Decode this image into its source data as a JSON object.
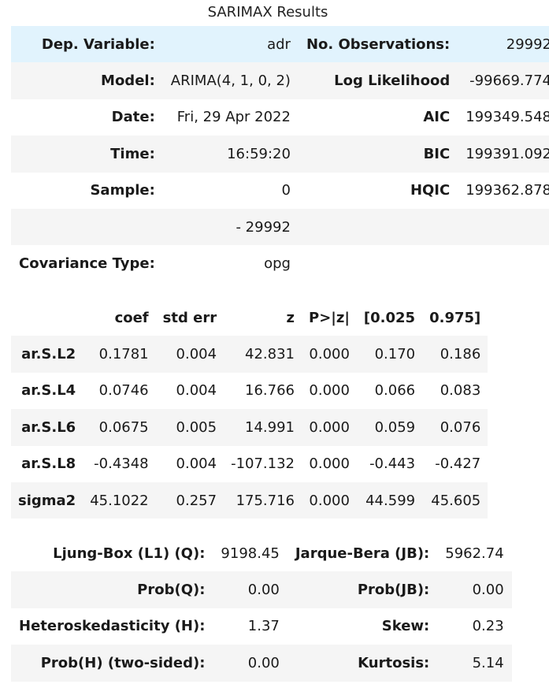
{
  "caption": "SARIMAX Results",
  "summary": {
    "rows": [
      {
        "l1": "Dep. Variable:",
        "v1": "adr",
        "l2": "No. Observations:",
        "v2": "29992"
      },
      {
        "l1": "Model:",
        "v1": "ARIMA(4, 1, 0, 2)",
        "l2": "Log Likelihood",
        "v2": "-99669.774"
      },
      {
        "l1": "Date:",
        "v1": "Fri, 29 Apr 2022",
        "l2": "AIC",
        "v2": "199349.548"
      },
      {
        "l1": "Time:",
        "v1": "16:59:20",
        "l2": "BIC",
        "v2": "199391.092"
      },
      {
        "l1": "Sample:",
        "v1": "0",
        "l2": "HQIC",
        "v2": "199362.878"
      },
      {
        "l1": "",
        "v1": "- 29992",
        "l2": "",
        "v2": ""
      },
      {
        "l1": "Covariance Type:",
        "v1": "opg",
        "l2": "",
        "v2": ""
      }
    ]
  },
  "coef": {
    "headers": [
      "",
      "coef",
      "std err",
      "z",
      "P>|z|",
      "[0.025",
      "0.975]"
    ],
    "rows": [
      {
        "name": "ar.S.L2",
        "vals": [
          "0.1781",
          "0.004",
          "42.831",
          "0.000",
          "0.170",
          "0.186"
        ]
      },
      {
        "name": "ar.S.L4",
        "vals": [
          "0.0746",
          "0.004",
          "16.766",
          "0.000",
          "0.066",
          "0.083"
        ]
      },
      {
        "name": "ar.S.L6",
        "vals": [
          "0.0675",
          "0.005",
          "14.991",
          "0.000",
          "0.059",
          "0.076"
        ]
      },
      {
        "name": "ar.S.L8",
        "vals": [
          "-0.4348",
          "0.004",
          "-107.132",
          "0.000",
          "-0.443",
          "-0.427"
        ]
      },
      {
        "name": "sigma2",
        "vals": [
          "45.1022",
          "0.257",
          "175.716",
          "0.000",
          "44.599",
          "45.605"
        ]
      }
    ]
  },
  "diag": {
    "rows": [
      {
        "l1": "Ljung-Box (L1) (Q):",
        "v1": "9198.45",
        "l2": "Jarque-Bera (JB):",
        "v2": "5962.74"
      },
      {
        "l1": "Prob(Q):",
        "v1": "0.00",
        "l2": "Prob(JB):",
        "v2": "0.00"
      },
      {
        "l1": "Heteroskedasticity (H):",
        "v1": "1.37",
        "l2": "Skew:",
        "v2": "0.23"
      },
      {
        "l1": "Prob(H) (two-sided):",
        "v1": "0.00",
        "l2": "Kurtosis:",
        "v2": "5.14"
      }
    ]
  },
  "colors": {
    "row_alt": "#f5f5f5",
    "row_highlight": "#e1f3fd"
  }
}
